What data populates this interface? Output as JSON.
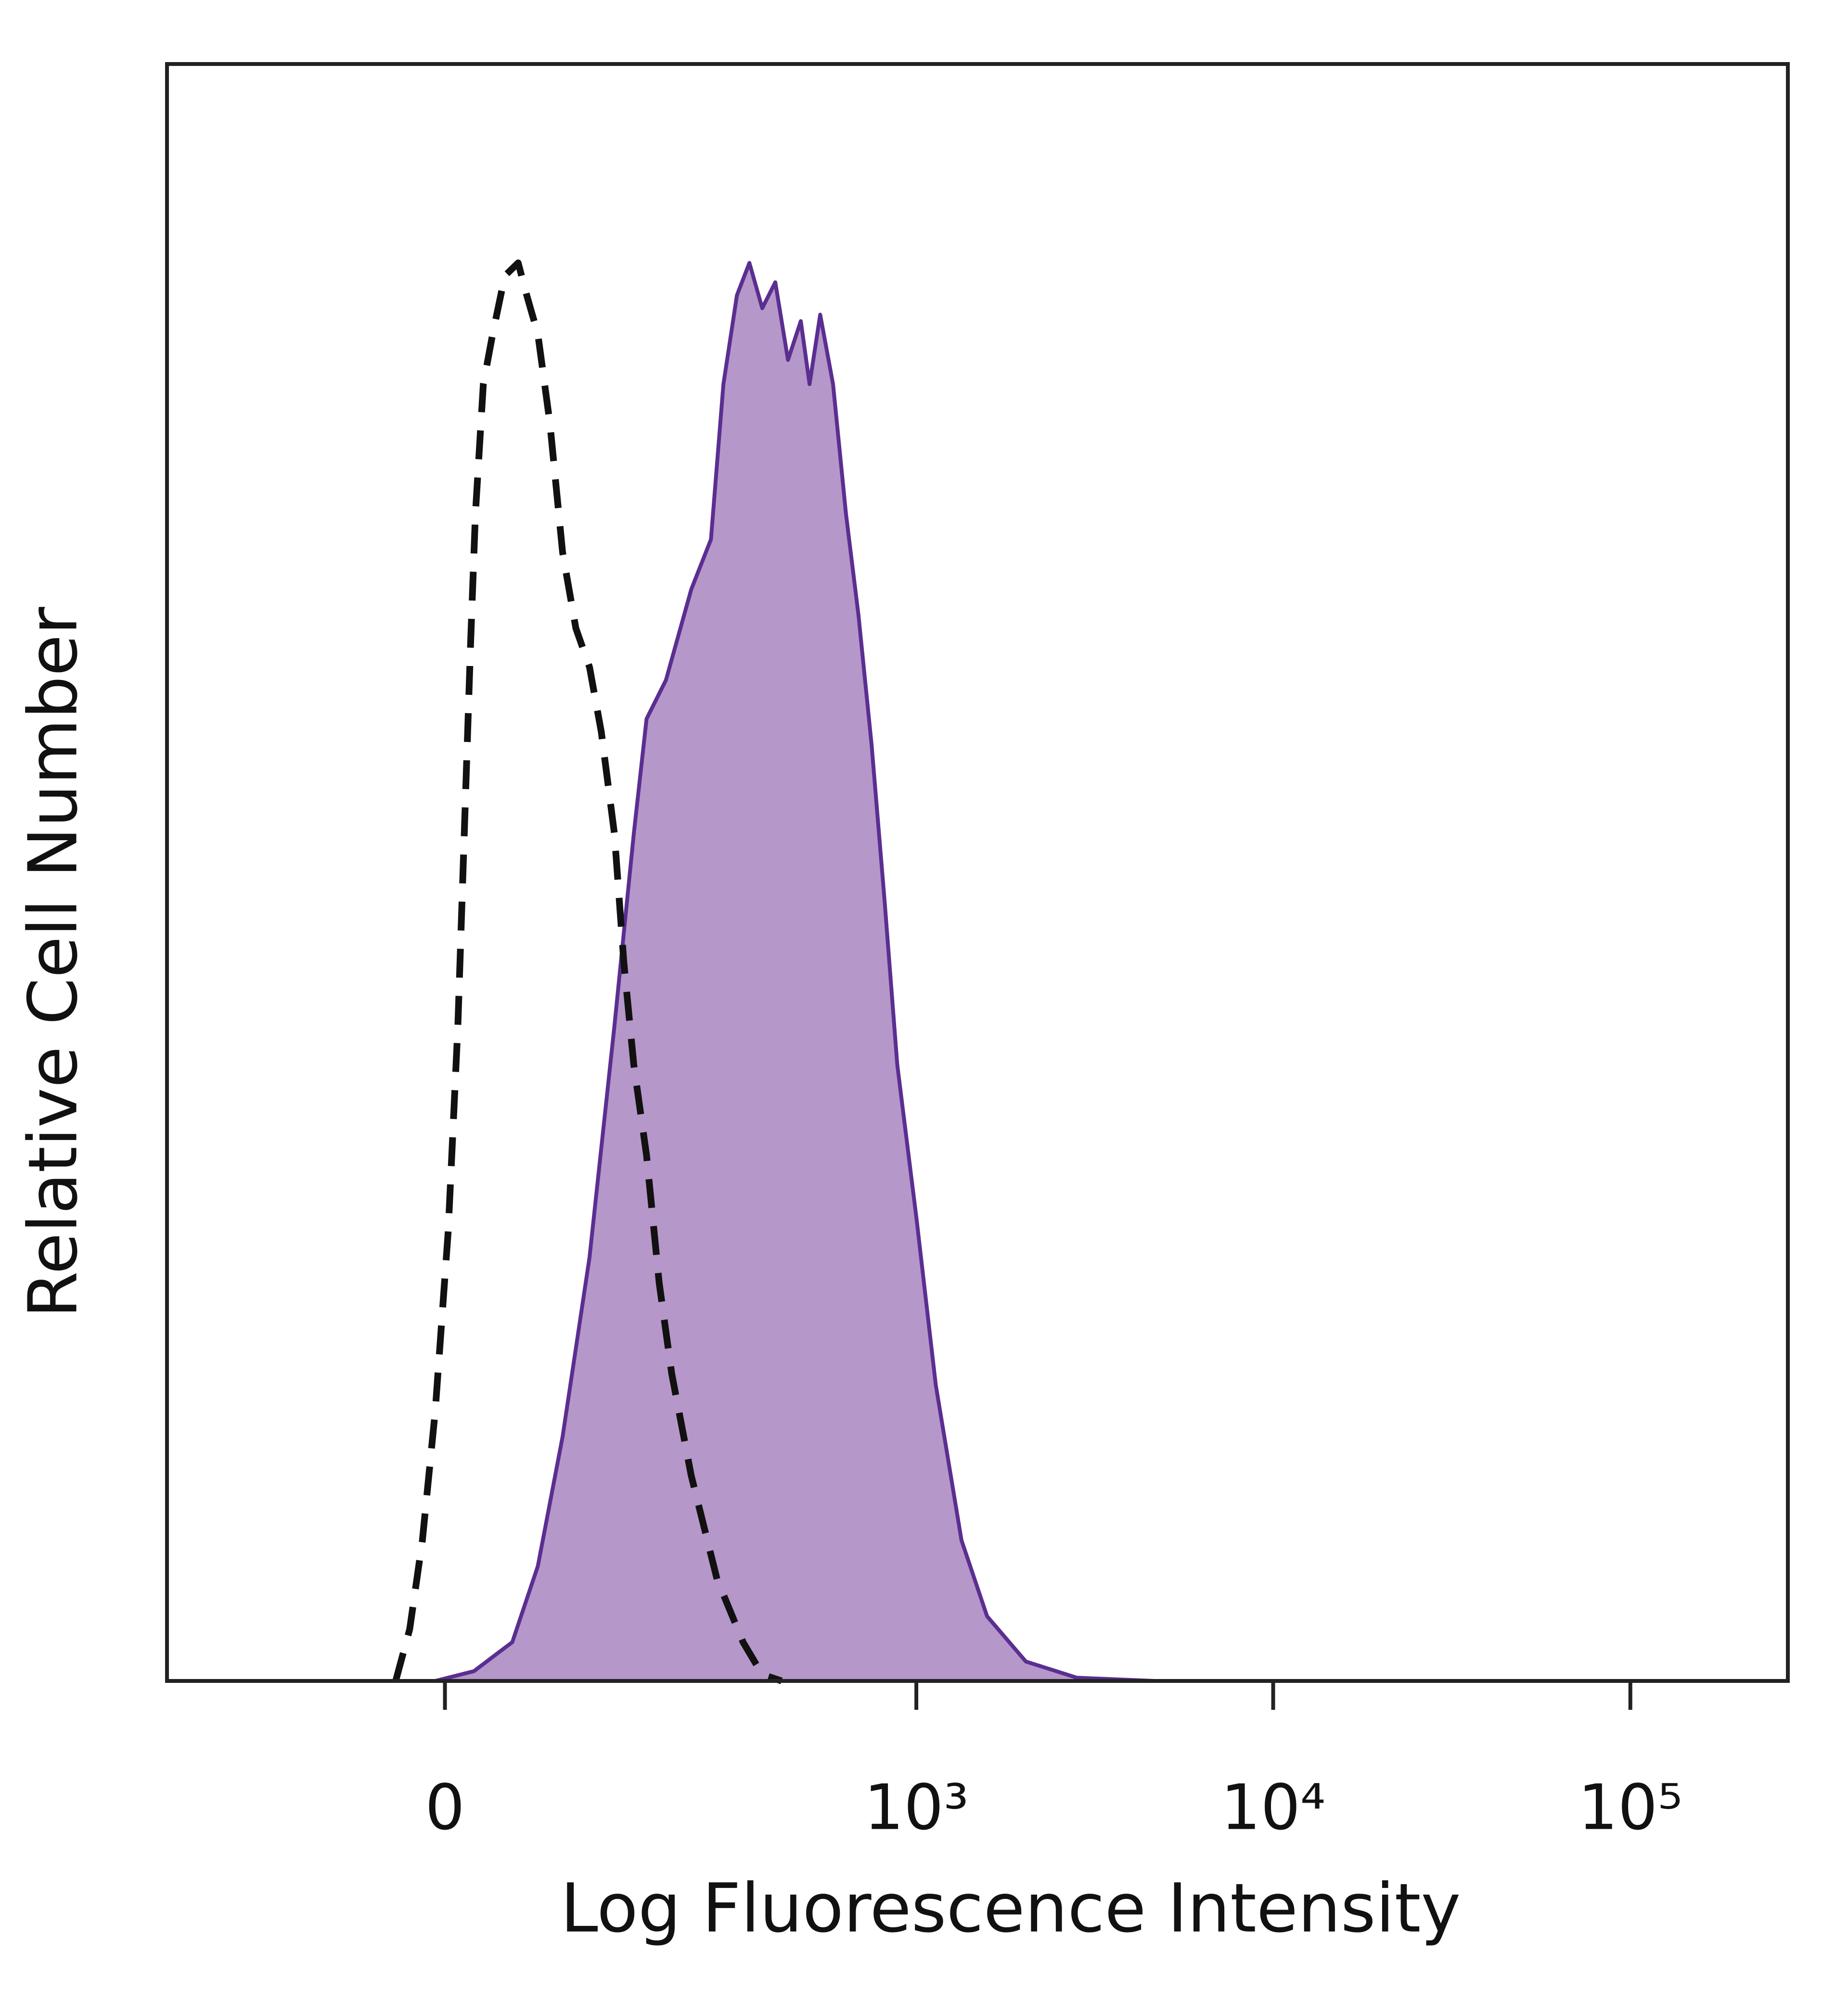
{
  "chart_data": {
    "type": "area",
    "xlabel": "Log Fluorescence Intensity",
    "ylabel": "Relative Cell Number",
    "xscale": "biexponential",
    "xlim": [
      -280,
      276000
    ],
    "ylim": [
      0,
      100
    ],
    "xticks": [
      0,
      {
        "value": 1000,
        "label": "10³"
      },
      {
        "value": 10000,
        "label": "10⁴"
      },
      {
        "value": 100000,
        "label": "10⁵"
      }
    ],
    "series": [
      {
        "color": "#5b2e91",
        "fill": "#b597c9",
        "dashed": false,
        "x": [
          -270,
          -6,
          18,
          43,
          61,
          80,
          103,
          127,
          148,
          163,
          188,
          225,
          258,
          281,
          308,
          335,
          365,
          398,
          433,
          471,
          499,
          535,
          582,
          633,
          687,
          748,
          813,
          884,
          1001,
          1134,
          1339,
          1580,
          2030,
          2820,
          4650,
          247500
        ],
        "values": [
          0,
          0,
          0.6,
          2.4,
          7.1,
          15.1,
          26.2,
          40.5,
          52.4,
          59.5,
          61.9,
          67.5,
          70.6,
          80.2,
          85.7,
          87.7,
          84.9,
          86.5,
          81.7,
          84.1,
          80.2,
          84.5,
          80.2,
          72.2,
          65.9,
          57.9,
          48.4,
          38.1,
          28.6,
          18.3,
          8.7,
          4.0,
          1.2,
          0.2,
          0,
          0
        ]
      },
      {
        "color": "#111111",
        "fill": "none",
        "dashed": true,
        "x": [
          -31,
          -22,
          -14,
          -6,
          2,
          8,
          12,
          16,
          19,
          24,
          30,
          38,
          47,
          53,
          61,
          70,
          80,
          91,
          103,
          114,
          127,
          137,
          148,
          163,
          179,
          196,
          225,
          269,
          321,
          365,
          415
        ],
        "values": [
          0,
          3.2,
          8.7,
          16.7,
          27.8,
          40.5,
          52.4,
          64.3,
          72.2,
          80.2,
          83.3,
          86.9,
          87.7,
          85.7,
          83.3,
          77.8,
          69.8,
          65.1,
          62.7,
          58.7,
          52.4,
          44.4,
          38.1,
          32.5,
          24.6,
          19.0,
          12.7,
          6.3,
          2.4,
          0.4,
          0
        ]
      }
    ]
  }
}
